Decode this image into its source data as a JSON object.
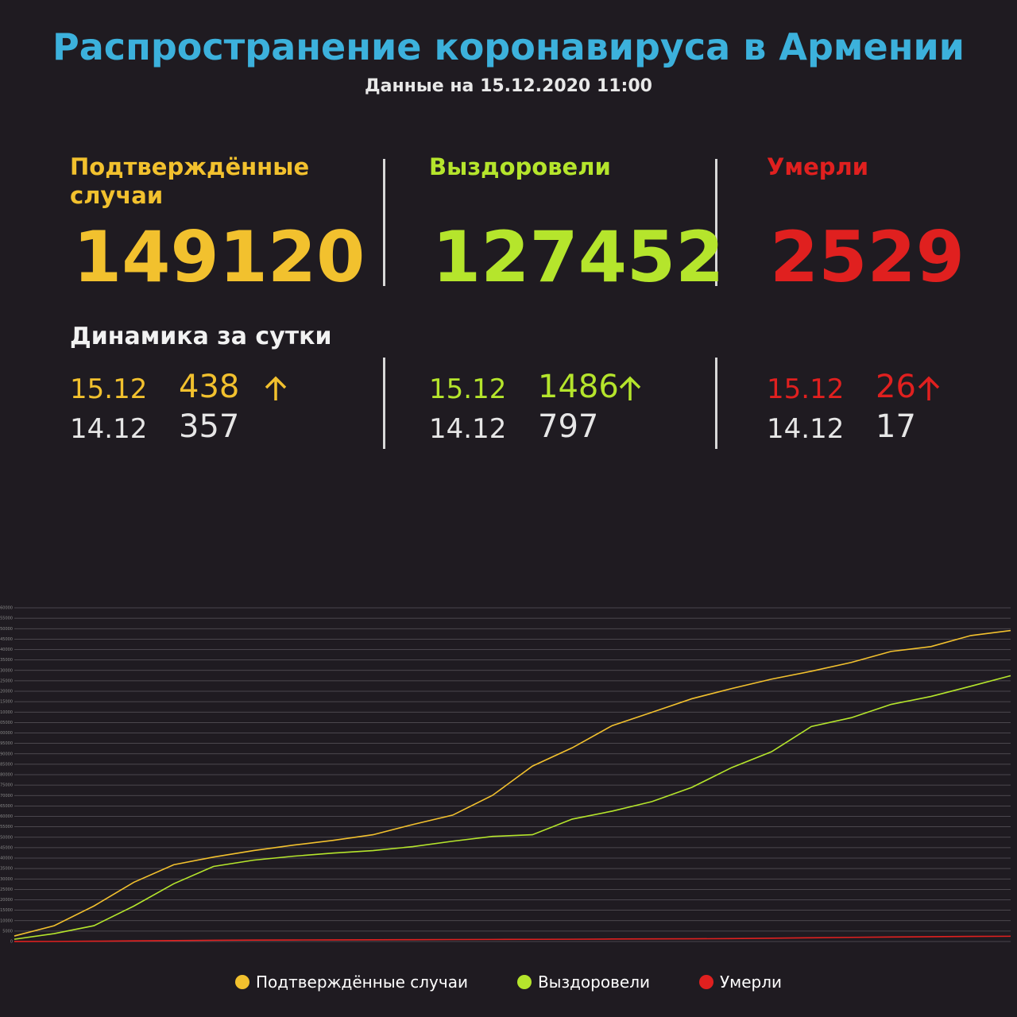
{
  "header": {
    "title": "Распространение коронавируса в Армении",
    "subtitle": "Данные на 15.12.2020 11:00",
    "dynamics_title": "Динамика за сутки"
  },
  "stats": [
    {
      "label": "Подтверждённые случаи",
      "total": "149120",
      "today_date": "15.12",
      "today_value": "438",
      "yesterday_date": "14.12",
      "yesterday_value": "357",
      "color": "#f2c12e"
    },
    {
      "label": "Выздоровели",
      "total": "127452",
      "today_date": "15.12",
      "today_value": "1486",
      "yesterday_date": "14.12",
      "yesterday_value": "797",
      "color": "#b5e52c"
    },
    {
      "label": "Умерли",
      "total": "2529",
      "today_date": "15.12",
      "today_value": "26",
      "yesterday_date": "14.12",
      "yesterday_value": "17",
      "color": "#e0201f"
    }
  ],
  "chart_data": {
    "type": "line",
    "ylim": [
      0,
      160000
    ],
    "yticks": [
      0,
      5000,
      10000,
      15000,
      20000,
      25000,
      30000,
      35000,
      40000,
      45000,
      50000,
      55000,
      60000,
      65000,
      70000,
      75000,
      80000,
      85000,
      90000,
      95000,
      100000,
      105000,
      110000,
      115000,
      120000,
      125000,
      130000,
      135000,
      140000,
      145000,
      150000,
      155000,
      160000
    ],
    "grid": true,
    "series": [
      {
        "name": "Подтверждённые случаи",
        "color": "#f2c12e",
        "values": [
          2650,
          7580,
          17050,
          28400,
          36800,
          40500,
          43600,
          46200,
          48500,
          51200,
          56100,
          60600,
          70100,
          84100,
          92900,
          103500,
          109900,
          116400,
          121300,
          125800,
          129600,
          133800,
          139100,
          141400,
          146700,
          149120
        ]
      },
      {
        "name": "Выздоровели",
        "color": "#b5e52c",
        "values": [
          1100,
          3800,
          7600,
          17000,
          27700,
          36000,
          39000,
          40900,
          42400,
          43600,
          45500,
          48100,
          50400,
          51200,
          58700,
          62500,
          67100,
          73900,
          83400,
          91000,
          103100,
          107300,
          113700,
          117500,
          122400,
          127452
        ]
      },
      {
        "name": "Умерли",
        "color": "#e0201f",
        "values": [
          10,
          50,
          150,
          300,
          450,
          600,
          700,
          750,
          800,
          850,
          900,
          950,
          1000,
          1050,
          1100,
          1200,
          1250,
          1300,
          1400,
          1600,
          1800,
          2000,
          2150,
          2300,
          2450,
          2529
        ]
      }
    ]
  }
}
